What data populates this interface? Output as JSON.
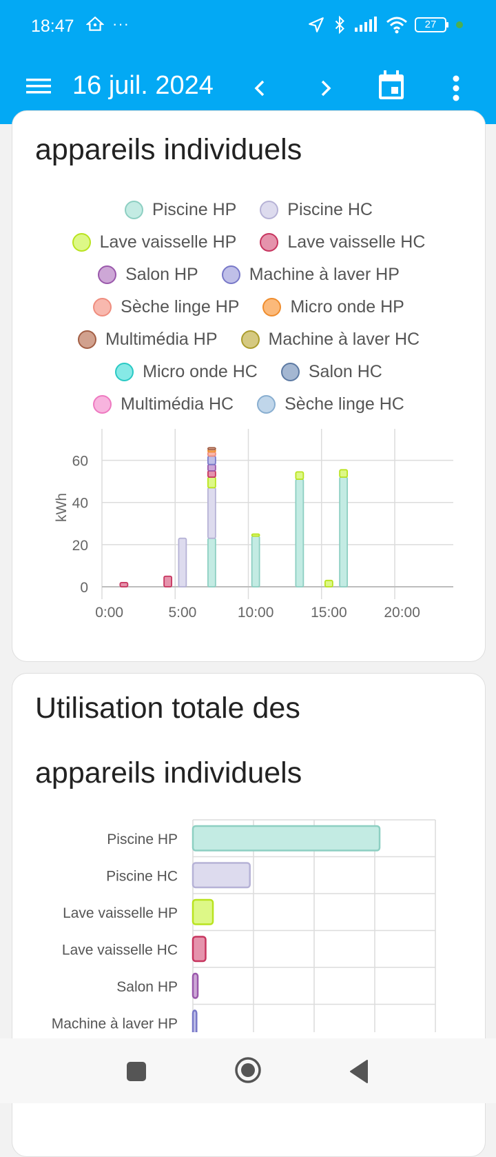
{
  "status": {
    "time": "18:47",
    "battery": "27",
    "colors": {
      "bar": "#03a9f4",
      "dot": "#4caf50"
    }
  },
  "appbar": {
    "date": "16 juil. 2024",
    "icons": [
      "menu-icon",
      "chevron-left-icon",
      "chevron-right-icon",
      "calendar-icon",
      "more-vertical-icon"
    ]
  },
  "card1": {
    "title": "appareils individuels",
    "legend": [
      [
        "Piscine HP",
        "Piscine HC"
      ],
      [
        "Lave vaisselle HP",
        "Lave vaisselle HC"
      ],
      [
        "Salon HP",
        "Machine à laver HP"
      ],
      [
        "Sèche linge HP",
        "Micro onde HP"
      ],
      [
        "Multimédia HP",
        "Machine à laver HC"
      ],
      [
        "Micro onde HC",
        "Salon HC"
      ],
      [
        "Multimédia HC",
        "Sèche linge HC"
      ]
    ]
  },
  "card2": {
    "title_line1": "Utilisation totale des",
    "title_line2": "appareils individuels"
  },
  "series_colors": {
    "Piscine HP": {
      "fill": "#c3ebe3",
      "stroke": "#8dcfc2"
    },
    "Piscine HC": {
      "fill": "#dddbee",
      "stroke": "#b6b2d6"
    },
    "Lave vaisselle HP": {
      "fill": "#ddf887",
      "stroke": "#b9e31f"
    },
    "Lave vaisselle HC": {
      "fill": "#e593ac",
      "stroke": "#c7355f"
    },
    "Salon HP": {
      "fill": "#cda7d6",
      "stroke": "#9a58ab"
    },
    "Machine à laver HP": {
      "fill": "#bfbfe8",
      "stroke": "#7878c8"
    },
    "Sèche linge HP": {
      "fill": "#f8b8ae",
      "stroke": "#ef8d7e"
    },
    "Micro onde HP": {
      "fill": "#fbb97a",
      "stroke": "#ef8d2e"
    },
    "Multimédia HP": {
      "fill": "#d1a18e",
      "stroke": "#a35f45"
    },
    "Machine à laver HC": {
      "fill": "#d5c981",
      "stroke": "#ab9c2d"
    },
    "Micro onde HC": {
      "fill": "#86e9e6",
      "stroke": "#29c9c4"
    },
    "Salon HC": {
      "fill": "#a4b7d2",
      "stroke": "#5d7aa3"
    },
    "Multimédia HC": {
      "fill": "#f8b4de",
      "stroke": "#ee79c0"
    },
    "Sèche linge HC": {
      "fill": "#c0d6ea",
      "stroke": "#88aed0"
    }
  },
  "chart_data": [
    {
      "type": "bar",
      "stacked": true,
      "ylabel": "kWh",
      "xlabel": "",
      "ylim": [
        0,
        70
      ],
      "yticks": [
        0,
        20,
        40,
        60
      ],
      "xticks": [
        "0:00",
        "5:00",
        "10:00",
        "15:00",
        "20:00"
      ],
      "xlim": [
        -0.5,
        23.5
      ],
      "grid": true,
      "legend": "top",
      "bars": [
        {
          "hour": 1,
          "segments": [
            {
              "series": "Lave vaisselle HC",
              "value": 2
            }
          ]
        },
        {
          "hour": 4,
          "segments": [
            {
              "series": "Lave vaisselle HC",
              "value": 5
            }
          ]
        },
        {
          "hour": 5,
          "segments": [
            {
              "series": "Piscine HC",
              "value": 23
            }
          ]
        },
        {
          "hour": 7,
          "segments": [
            {
              "series": "Piscine HP",
              "value": 23
            },
            {
              "series": "Piscine HC",
              "value": 24
            },
            {
              "series": "Lave vaisselle HP",
              "value": 5
            },
            {
              "series": "Lave vaisselle HC",
              "value": 3
            },
            {
              "series": "Salon HP",
              "value": 3
            },
            {
              "series": "Machine à laver HP",
              "value": 4
            },
            {
              "series": "Sèche linge HP",
              "value": 2
            },
            {
              "series": "Micro onde HP",
              "value": 1
            },
            {
              "series": "Multimédia HP",
              "value": 1
            }
          ]
        },
        {
          "hour": 10,
          "segments": [
            {
              "series": "Piscine HP",
              "value": 24
            },
            {
              "series": "Lave vaisselle HP",
              "value": 1
            }
          ]
        },
        {
          "hour": 13,
          "segments": [
            {
              "series": "Piscine HP",
              "value": 51
            },
            {
              "series": "Lave vaisselle HP",
              "value": 3.5
            }
          ]
        },
        {
          "hour": 15,
          "segments": [
            {
              "series": "Lave vaisselle HP",
              "value": 3
            }
          ]
        },
        {
          "hour": 16,
          "segments": [
            {
              "series": "Piscine HP",
              "value": 52
            },
            {
              "series": "Lave vaisselle HP",
              "value": 3.5
            }
          ]
        }
      ]
    },
    {
      "type": "bar",
      "orientation": "horizontal",
      "xlabel": "",
      "ylabel": "",
      "xlim": [
        0,
        400
      ],
      "grid": true,
      "categories": [
        "Piscine HP",
        "Piscine HC",
        "Lave vaisselle HP",
        "Lave vaisselle HC",
        "Salon HP",
        "Machine à laver HP"
      ],
      "values": [
        308,
        94,
        33,
        21,
        8,
        6
      ]
    }
  ]
}
